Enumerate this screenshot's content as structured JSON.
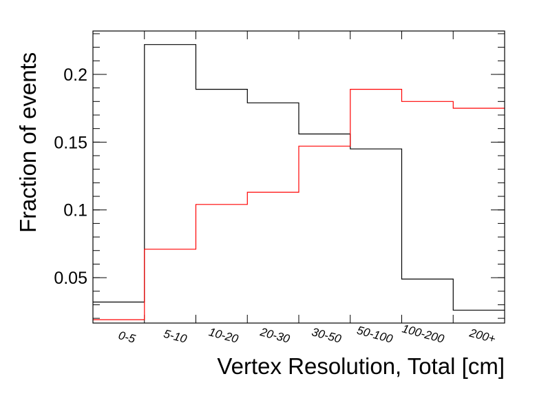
{
  "chart_data": {
    "type": "histogram-step",
    "title": "",
    "xlabel": "Vertex Resolution, Total [cm]",
    "ylabel": "Fraction of events",
    "categories": [
      "0-5",
      "5-10",
      "10-20",
      "20-30",
      "30-50",
      "50-100",
      "100-200",
      "200+"
    ],
    "ylim": [
      0.0165,
      0.232
    ],
    "yticks": [
      0.05,
      0.1,
      0.15,
      0.2
    ],
    "ytick_labels": [
      "0.05",
      "0.1",
      "0.15",
      "0.2"
    ],
    "grid": false,
    "series": [
      {
        "color": "#000000",
        "values": [
          0.032,
          0.222,
          0.189,
          0.179,
          0.156,
          0.145,
          0.049,
          0.026
        ]
      },
      {
        "color": "#ff0000",
        "values": [
          0.019,
          0.071,
          0.104,
          0.113,
          0.147,
          0.189,
          0.18,
          0.175
        ]
      }
    ]
  }
}
